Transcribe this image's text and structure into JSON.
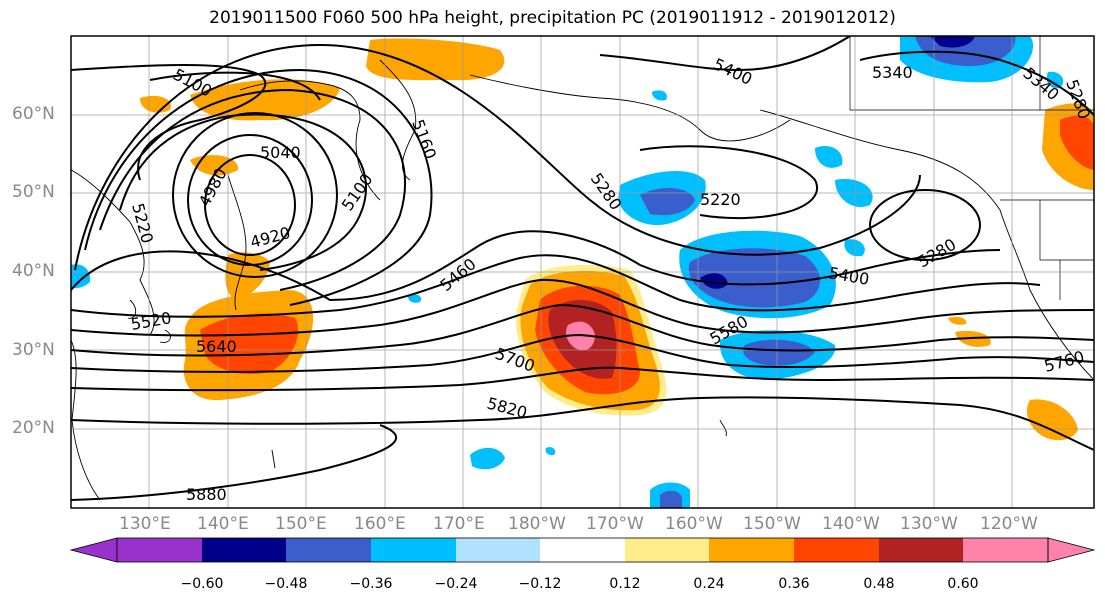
{
  "title": "2019011500 F060 500 hPa height, precipitation PC (2019011912 - 2019012012)",
  "lat_labels": [
    "60°N",
    "50°N",
    "40°N",
    "30°N",
    "20°N"
  ],
  "lon_labels": [
    "130°E",
    "140°E",
    "150°E",
    "160°E",
    "170°E",
    "180°W",
    "170°W",
    "160°W",
    "150°W",
    "140°W",
    "130°W",
    "120°W"
  ],
  "contour_labels": [
    "5100",
    "5040",
    "4980",
    "5220",
    "4920",
    "5160",
    "5100",
    "5520",
    "5640",
    "5460",
    "5280",
    "5340",
    "5400",
    "5220",
    "5280",
    "5400",
    "5580",
    "5700",
    "5820",
    "5880",
    "5760",
    "5340",
    "5280"
  ],
  "colorbar": {
    "ticks": [
      "−0.60",
      "−0.48",
      "−0.36",
      "−0.24",
      "−0.12",
      "0.12",
      "0.24",
      "0.36",
      "0.48",
      "0.60"
    ],
    "colors": [
      "#9932cc",
      "#00008b",
      "#3a5fcd",
      "#00bfff",
      "#b0e2ff",
      "#ffffff",
      "#ffec8b",
      "#ffa500",
      "#ff4500",
      "#b22222",
      "#ff82ab"
    ]
  }
}
